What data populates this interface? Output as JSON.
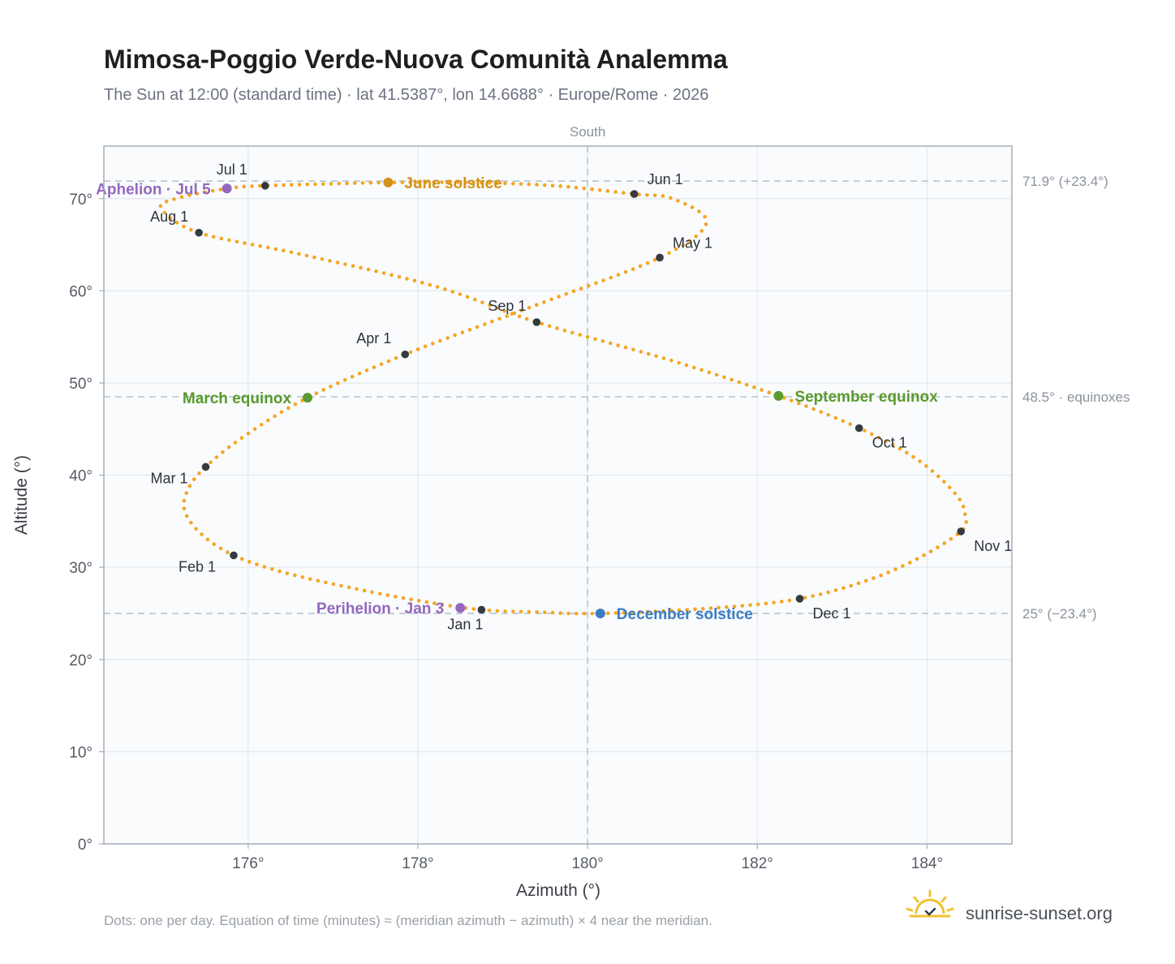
{
  "chart_data": {
    "type": "scatter",
    "title": "Mimosa-Poggio Verde-Nuova Comunità Analemma",
    "subtitle": "The Sun at 12:00 (standard time) · lat 41.5387°, lon 14.6688° · Europe/Rome · 2026",
    "xlabel": "Azimuth (°)",
    "ylabel": "Altitude (°)",
    "xlim": [
      174.3,
      185.0
    ],
    "ylim": [
      0,
      75.7
    ],
    "x_ticks": [
      176,
      178,
      180,
      182,
      184
    ],
    "x_tick_labels": [
      "176°",
      "178°",
      "180°",
      "182°",
      "184°"
    ],
    "y_ticks": [
      0,
      10,
      20,
      30,
      40,
      50,
      60,
      70
    ],
    "y_tick_labels": [
      "0°",
      "10°",
      "20°",
      "30°",
      "40°",
      "50°",
      "60°",
      "70°"
    ],
    "grid": true,
    "colors": {
      "path": "#f5a623",
      "month": "#343a40",
      "june_solstice": "#d4911a",
      "december_solstice": "#3b7dc4",
      "equinox": "#5a9a2e",
      "apsis": "#9467bd",
      "reference": "#b8c4d0",
      "plot_background": "#f9fbfd",
      "frame": "#a3aebb"
    },
    "meridian": {
      "x": 180,
      "label": "South"
    },
    "reference_lines": [
      {
        "y": 71.9,
        "label": "71.9° (+23.4°)"
      },
      {
        "y": 48.5,
        "label": "48.5° · equinoxes"
      },
      {
        "y": 25.0,
        "label": "25° (−23.4°)"
      }
    ],
    "path_keypoints": [
      {
        "x": 178.75,
        "y": 25.4
      },
      {
        "x": 178.0,
        "y": 26.4
      },
      {
        "x": 177.2,
        "y": 27.8
      },
      {
        "x": 176.4,
        "y": 29.5
      },
      {
        "x": 175.83,
        "y": 31.3
      },
      {
        "x": 175.45,
        "y": 33.6
      },
      {
        "x": 175.25,
        "y": 36.2
      },
      {
        "x": 175.3,
        "y": 38.6
      },
      {
        "x": 175.5,
        "y": 40.9
      },
      {
        "x": 175.95,
        "y": 44.2
      },
      {
        "x": 176.7,
        "y": 48.4
      },
      {
        "x": 177.85,
        "y": 53.1
      },
      {
        "x": 179.35,
        "y": 58.3
      },
      {
        "x": 180.85,
        "y": 63.6
      },
      {
        "x": 181.4,
        "y": 67.4
      },
      {
        "x": 181.0,
        "y": 70.0
      },
      {
        "x": 180.55,
        "y": 70.5
      },
      {
        "x": 179.6,
        "y": 71.4
      },
      {
        "x": 178.6,
        "y": 71.75
      },
      {
        "x": 177.65,
        "y": 71.75
      },
      {
        "x": 176.95,
        "y": 71.6
      },
      {
        "x": 176.2,
        "y": 71.4
      },
      {
        "x": 175.75,
        "y": 71.1
      },
      {
        "x": 175.15,
        "y": 70.0
      },
      {
        "x": 174.98,
        "y": 68.9
      },
      {
        "x": 175.42,
        "y": 66.3
      },
      {
        "x": 176.6,
        "y": 64.0
      },
      {
        "x": 178.2,
        "y": 60.5
      },
      {
        "x": 179.4,
        "y": 56.6
      },
      {
        "x": 181.0,
        "y": 52.4
      },
      {
        "x": 182.25,
        "y": 48.6
      },
      {
        "x": 183.2,
        "y": 45.1
      },
      {
        "x": 183.9,
        "y": 41.6
      },
      {
        "x": 184.35,
        "y": 37.8
      },
      {
        "x": 184.45,
        "y": 35.5
      },
      {
        "x": 184.4,
        "y": 33.9
      },
      {
        "x": 183.9,
        "y": 31.0
      },
      {
        "x": 183.3,
        "y": 28.6
      },
      {
        "x": 182.5,
        "y": 26.6
      },
      {
        "x": 181.5,
        "y": 25.6
      },
      {
        "x": 180.15,
        "y": 25.0
      },
      {
        "x": 179.4,
        "y": 25.15
      },
      {
        "x": 178.75,
        "y": 25.4
      }
    ],
    "month_points": [
      {
        "label": "Jan 1",
        "x": 178.75,
        "y": 25.4,
        "anchor": "below"
      },
      {
        "label": "Feb 1",
        "x": 175.83,
        "y": 31.3,
        "anchor": "below-left"
      },
      {
        "label": "Mar 1",
        "x": 175.5,
        "y": 40.9,
        "anchor": "below-left"
      },
      {
        "label": "Apr 1",
        "x": 177.85,
        "y": 53.1,
        "anchor": "above-left"
      },
      {
        "label": "May 1",
        "x": 180.85,
        "y": 63.6,
        "anchor": "above-right"
      },
      {
        "label": "Jun 1",
        "x": 180.55,
        "y": 70.5,
        "anchor": "above-right"
      },
      {
        "label": "Jul 1",
        "x": 176.2,
        "y": 71.4,
        "anchor": "above-left"
      },
      {
        "label": "Aug 1",
        "x": 175.42,
        "y": 66.3,
        "anchor": "above-left"
      },
      {
        "label": "Sep 1",
        "x": 179.4,
        "y": 56.6,
        "anchor": "above-left"
      },
      {
        "label": "Oct 1",
        "x": 183.2,
        "y": 45.1,
        "anchor": "below-right"
      },
      {
        "label": "Nov 1",
        "x": 184.4,
        "y": 33.9,
        "anchor": "below-right"
      },
      {
        "label": "Dec 1",
        "x": 182.5,
        "y": 26.6,
        "anchor": "below-right"
      }
    ],
    "events": [
      {
        "label": "June solstice",
        "x": 177.65,
        "y": 71.75,
        "color": "#d4911a",
        "side": "right"
      },
      {
        "label": "December solstice",
        "x": 180.15,
        "y": 25.0,
        "color": "#3b7dc4",
        "side": "right"
      },
      {
        "label": "March equinox",
        "x": 176.7,
        "y": 48.4,
        "color": "#5a9a2e",
        "side": "left"
      },
      {
        "label": "September equinox",
        "x": 182.25,
        "y": 48.6,
        "color": "#5a9a2e",
        "side": "right"
      },
      {
        "label": "Aphelion · Jul 5",
        "x": 175.75,
        "y": 71.1,
        "color": "#9467bd",
        "side": "left"
      },
      {
        "label": "Perihelion · Jan 3",
        "x": 178.5,
        "y": 25.6,
        "color": "#9467bd",
        "side": "left"
      }
    ]
  },
  "footnote": "Dots: one per day. Equation of time (minutes) ≈ (meridian azimuth − azimuth) × 4 near the meridian.",
  "brand": {
    "name": "sunrise-sunset.org",
    "icon": "sun-logo-icon"
  }
}
